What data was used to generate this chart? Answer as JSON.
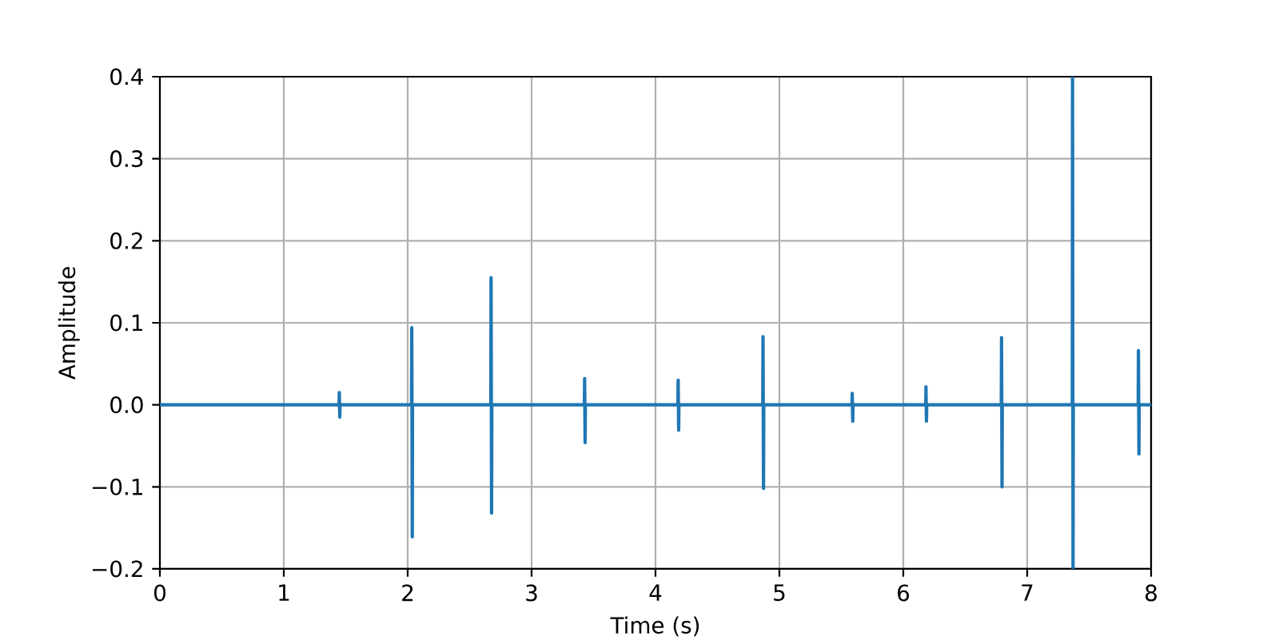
{
  "chart_data": {
    "type": "line",
    "xlabel": "Time (s)",
    "ylabel": "Amplitude",
    "series": [
      {
        "color": "#1f77b4",
        "x": [
          0,
          1.446,
          1.448,
          1.452,
          1.454,
          2.031,
          2.033,
          2.037,
          2.039,
          2.671,
          2.673,
          2.677,
          2.679,
          3.426,
          3.428,
          3.432,
          3.434,
          4.181,
          4.183,
          4.187,
          4.189,
          4.866,
          4.868,
          4.872,
          4.874,
          5.586,
          5.588,
          5.592,
          5.594,
          6.181,
          6.183,
          6.187,
          6.189,
          6.791,
          6.793,
          6.797,
          6.799,
          7.364,
          7.366,
          7.37,
          7.372,
          7.896,
          7.898,
          7.902,
          7.904,
          8
        ],
        "values": [
          0,
          0,
          0.015,
          -0.015,
          0,
          0,
          0.094,
          -0.161,
          0,
          0,
          0.155,
          -0.132,
          0,
          0,
          0.032,
          -0.046,
          0,
          0,
          0.03,
          -0.031,
          0,
          0,
          0.083,
          -0.102,
          0,
          0,
          0.014,
          -0.02,
          0,
          0,
          0.022,
          -0.02,
          0,
          0,
          0.082,
          -0.1,
          0,
          0,
          0.4,
          -0.2,
          0,
          0,
          0.066,
          -0.06,
          0,
          0
        ]
      }
    ],
    "xlim": [
      0,
      8
    ],
    "xticks": [
      0,
      1,
      2,
      3,
      4,
      5,
      6,
      7,
      8
    ],
    "ylim": [
      -0.2,
      0.4
    ],
    "yticks": [
      {
        "value": -0.2,
        "label": "−0.2"
      },
      {
        "value": -0.1,
        "label": "−0.1"
      },
      {
        "value": 0,
        "label": "0.0"
      },
      0.1,
      0.2,
      0.3,
      0.4
    ],
    "grid": true,
    "marker": "none",
    "line_style": "solid"
  }
}
